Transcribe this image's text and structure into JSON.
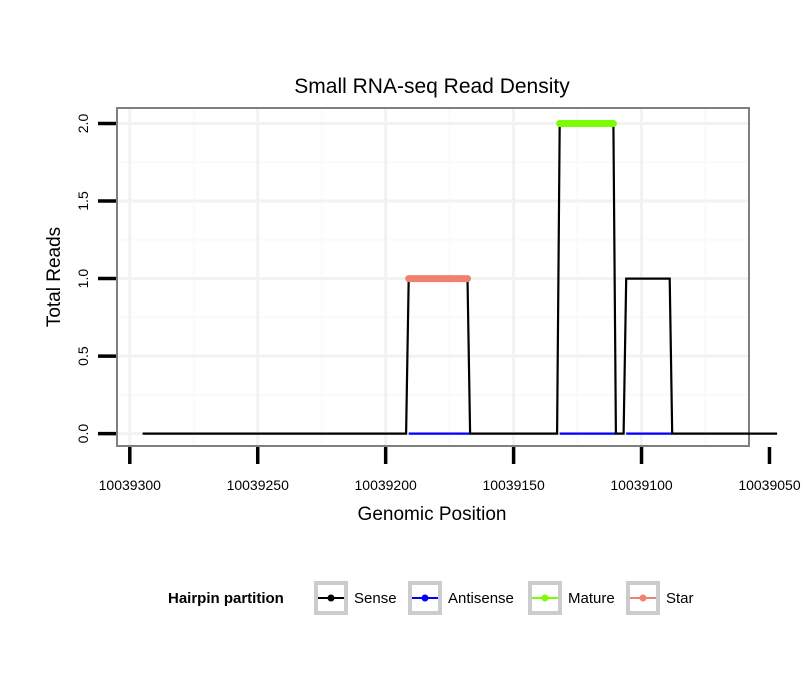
{
  "chart_data": {
    "type": "line",
    "title": "Small RNA-seq Read Density",
    "xlabel": "Genomic Position",
    "ylabel": "Total Reads",
    "x_reversed": true,
    "xlim": [
      10039305,
      10039058
    ],
    "ylim": [
      -0.08,
      2.1
    ],
    "x_ticks": [
      10039300,
      10039250,
      10039200,
      10039150,
      10039100,
      10039050
    ],
    "x_tick_labels": [
      "10039300",
      "10039250",
      "10039200",
      "10039150",
      "10039100",
      "10039050"
    ],
    "y_ticks": [
      0,
      0.5,
      1,
      1.5,
      2
    ],
    "y_tick_labels": [
      "0.0",
      "0.5",
      "1.0",
      "1.5",
      "2.0"
    ],
    "grid": true,
    "legend": {
      "title": "Hairpin partition",
      "position": "bottom",
      "entries": [
        {
          "name": "Sense",
          "color": "#000000"
        },
        {
          "name": "Antisense",
          "color": "#0000ff"
        },
        {
          "name": "Mature",
          "color": "#7cfc00"
        },
        {
          "name": "Star",
          "color": "#f08070"
        }
      ]
    },
    "series": [
      {
        "name": "Sense",
        "color": "#000000",
        "x": [
          10039295,
          10039192,
          10039191,
          10039168,
          10039167,
          10039133,
          10039132,
          10039111,
          10039110,
          10039107,
          10039106,
          10039089,
          10039088,
          10039047
        ],
        "y": [
          0,
          0,
          1,
          1,
          0,
          0,
          2,
          2,
          0,
          0,
          1,
          1,
          0,
          0
        ]
      },
      {
        "name": "Antisense",
        "color": "#0000ff",
        "x": [
          10039191,
          10039167,
          10039132,
          10039110,
          10039106,
          10039088
        ],
        "y": [
          0,
          0,
          0,
          0,
          0,
          0
        ]
      },
      {
        "name": "Mature",
        "color": "#7cfc00",
        "x": [
          10039132,
          10039111
        ],
        "y": [
          2,
          2
        ]
      },
      {
        "name": "Star",
        "color": "#f08070",
        "x": [
          10039191,
          10039168
        ],
        "y": [
          1,
          1
        ]
      }
    ]
  }
}
